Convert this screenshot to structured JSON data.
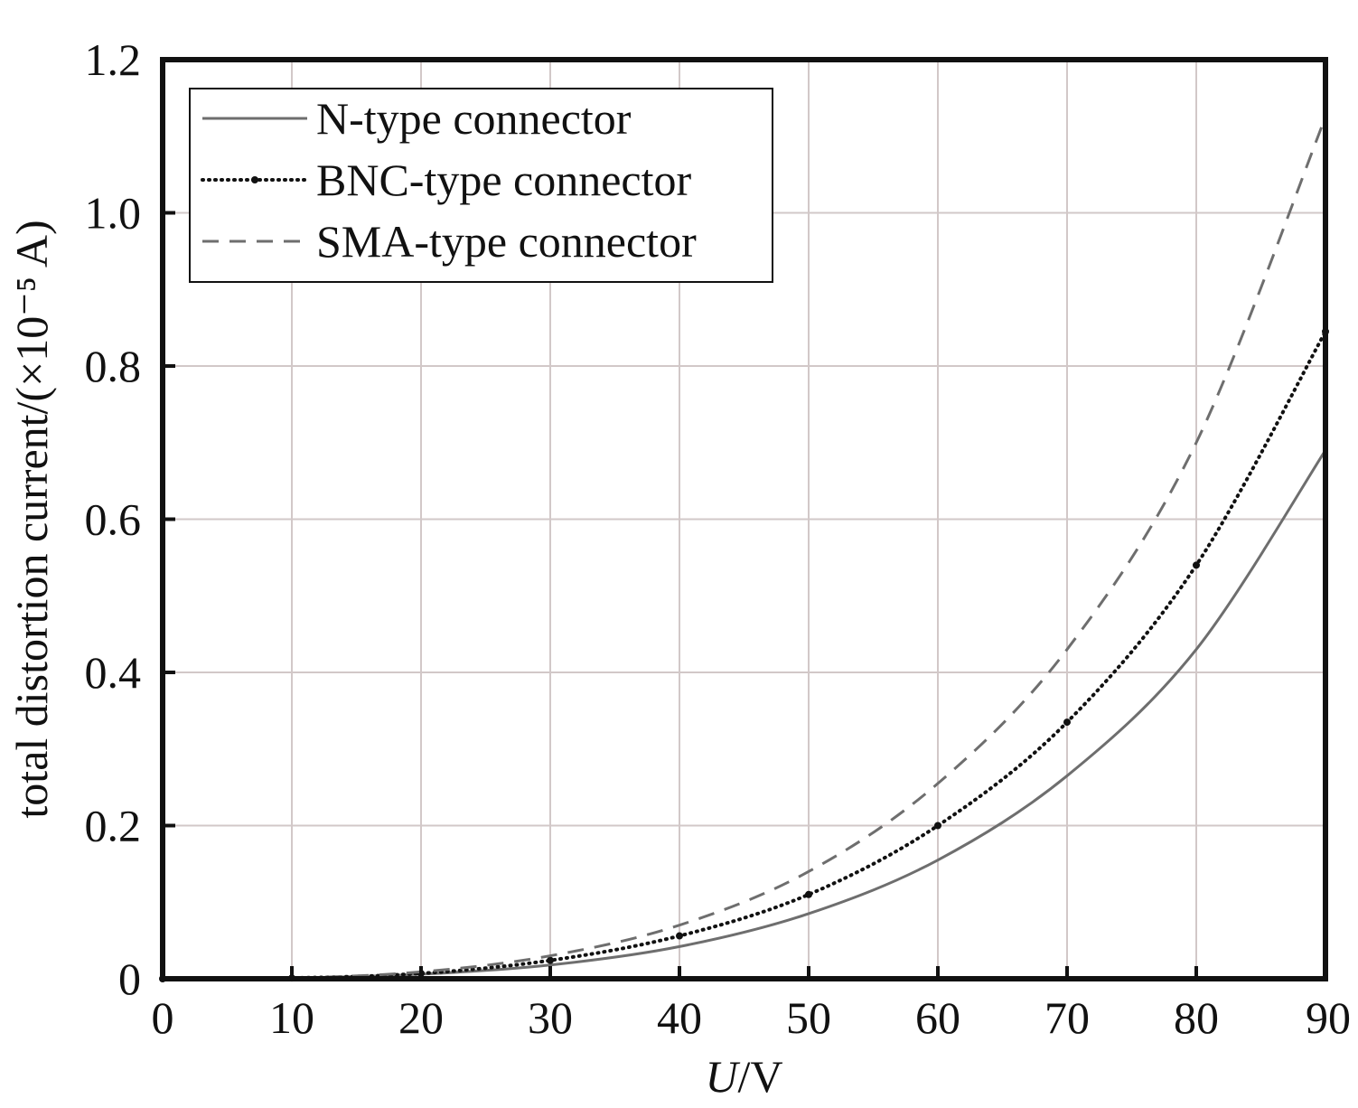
{
  "chart_data": {
    "type": "line",
    "title": "",
    "xlabel": "U/V",
    "xlabel_var": "U",
    "xlabel_unit": "/V",
    "ylabel": "total distortion current/(×10⁻⁵ A)",
    "xlim": [
      0,
      90
    ],
    "ylim": [
      0,
      1.2
    ],
    "x_ticks": [
      0,
      10,
      20,
      30,
      40,
      50,
      60,
      70,
      80,
      90
    ],
    "x_tick_labels": [
      "0",
      "10",
      "20",
      "30",
      "40",
      "50",
      "60",
      "70",
      "80",
      "90"
    ],
    "y_ticks": [
      0,
      0.2,
      0.4,
      0.6,
      0.8,
      1.0,
      1.2
    ],
    "y_tick_labels": [
      "0",
      "0.2",
      "0.4",
      "0.6",
      "0.8",
      "1.0",
      "1.2"
    ],
    "grid": true,
    "legend_position": "top-left",
    "x": [
      0,
      10,
      20,
      30,
      40,
      50,
      60,
      70,
      80,
      90
    ],
    "series": [
      {
        "name": "N-type connector",
        "style": "solid",
        "color": "#6e6e6e",
        "values": [
          0,
          0.001,
          0.006,
          0.018,
          0.042,
          0.085,
          0.155,
          0.265,
          0.43,
          0.69
        ]
      },
      {
        "name": "BNC-type connector",
        "style": "dotted-markers",
        "color": "#111111",
        "values": [
          0,
          0.001,
          0.007,
          0.024,
          0.056,
          0.11,
          0.2,
          0.335,
          0.54,
          0.845
        ]
      },
      {
        "name": "SMA-type connector",
        "style": "dashed",
        "color": "#6e6e6e",
        "values": [
          0,
          0.001,
          0.009,
          0.03,
          0.07,
          0.14,
          0.255,
          0.43,
          0.7,
          1.125
        ]
      }
    ]
  }
}
